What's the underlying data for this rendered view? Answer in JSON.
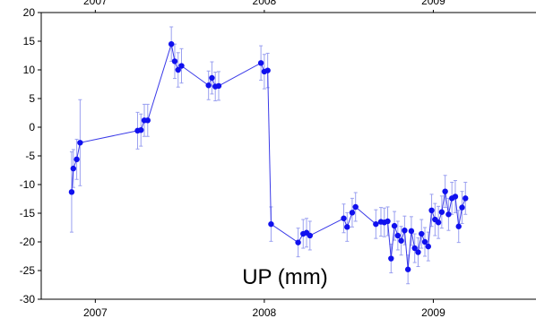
{
  "chart_data": {
    "type": "scatter",
    "title": "",
    "inner_label": "UP (mm)",
    "xlabel": "",
    "ylabel": "",
    "xlim": [
      2006.68,
      2009.65
    ],
    "ylim": [
      -30,
      20
    ],
    "x_ticks": [
      2007,
      2008,
      2009
    ],
    "x_tick_labels": [
      "2007",
      "2008",
      "2009"
    ],
    "y_ticks": [
      20,
      15,
      10,
      5,
      0,
      -5,
      -10,
      -15,
      -20,
      -25,
      -30
    ],
    "y_tick_labels": [
      "20",
      "15",
      "10",
      "5",
      "0",
      "-5",
      "-10",
      "-15",
      "-20",
      "-25",
      "-30"
    ],
    "grid": false,
    "colors": {
      "series": "#1010ee",
      "error_bar": "#9aa0f0",
      "line": "#3a3ae8",
      "axis": "#000000"
    },
    "series": [
      {
        "points": [
          {
            "x": 2006.86,
            "y": -11.3,
            "err": 7.0
          },
          {
            "x": 2006.87,
            "y": -7.2,
            "err": 3.3
          },
          {
            "x": 2006.89,
            "y": -5.6,
            "err": 3.5
          },
          {
            "x": 2006.91,
            "y": -2.7,
            "err": 7.5
          },
          {
            "x": 2007.25,
            "y": -0.6,
            "err": 3.2
          },
          {
            "x": 2007.27,
            "y": -0.5,
            "err": 2.8
          },
          {
            "x": 2007.29,
            "y": 1.2,
            "err": 2.8
          },
          {
            "x": 2007.31,
            "y": 1.2,
            "err": 2.8
          },
          {
            "x": 2007.45,
            "y": 14.5,
            "err": 3.0
          },
          {
            "x": 2007.47,
            "y": 11.5,
            "err": 3.0
          },
          {
            "x": 2007.49,
            "y": 10.0,
            "err": 3.0
          },
          {
            "x": 2007.51,
            "y": 10.7,
            "err": 3.0
          },
          {
            "x": 2007.67,
            "y": 7.3,
            "err": 2.5
          },
          {
            "x": 2007.69,
            "y": 8.6,
            "err": 2.8
          },
          {
            "x": 2007.71,
            "y": 7.1,
            "err": 2.5
          },
          {
            "x": 2007.73,
            "y": 7.2,
            "err": 2.5
          },
          {
            "x": 2007.98,
            "y": 11.2,
            "err": 3.0
          },
          {
            "x": 2008.0,
            "y": 9.7,
            "err": 3.0
          },
          {
            "x": 2008.02,
            "y": 9.9,
            "err": 3.0
          },
          {
            "x": 2008.04,
            "y": -16.9,
            "err": 3.0
          },
          {
            "x": 2008.2,
            "y": -20.1,
            "err": 2.5
          },
          {
            "x": 2008.23,
            "y": -18.6,
            "err": 2.5
          },
          {
            "x": 2008.25,
            "y": -18.4,
            "err": 2.5
          },
          {
            "x": 2008.27,
            "y": -18.9,
            "err": 2.5
          },
          {
            "x": 2008.47,
            "y": -15.9,
            "err": 2.5
          },
          {
            "x": 2008.49,
            "y": -17.4,
            "err": 2.5
          },
          {
            "x": 2008.52,
            "y": -14.9,
            "err": 2.5
          },
          {
            "x": 2008.54,
            "y": -13.9,
            "err": 2.5
          },
          {
            "x": 2008.66,
            "y": -16.9,
            "err": 2.5
          },
          {
            "x": 2008.69,
            "y": -16.5,
            "err": 2.5
          },
          {
            "x": 2008.71,
            "y": -16.6,
            "err": 2.5
          },
          {
            "x": 2008.73,
            "y": -16.4,
            "err": 2.5
          },
          {
            "x": 2008.75,
            "y": -22.9,
            "err": 2.5
          },
          {
            "x": 2008.77,
            "y": -17.2,
            "err": 2.5
          },
          {
            "x": 2008.79,
            "y": -18.9,
            "err": 2.5
          },
          {
            "x": 2008.81,
            "y": -19.8,
            "err": 2.5
          },
          {
            "x": 2008.83,
            "y": -18.0,
            "err": 2.5
          },
          {
            "x": 2008.85,
            "y": -24.8,
            "err": 2.5
          },
          {
            "x": 2008.87,
            "y": -18.1,
            "err": 2.5
          },
          {
            "x": 2008.89,
            "y": -21.1,
            "err": 2.5
          },
          {
            "x": 2008.91,
            "y": -21.8,
            "err": 2.5
          },
          {
            "x": 2008.93,
            "y": -18.6,
            "err": 2.5
          },
          {
            "x": 2008.95,
            "y": -20.0,
            "err": 2.5
          },
          {
            "x": 2008.97,
            "y": -20.8,
            "err": 2.5
          },
          {
            "x": 2008.99,
            "y": -14.5,
            "err": 2.8
          },
          {
            "x": 2009.01,
            "y": -16.1,
            "err": 2.8
          },
          {
            "x": 2009.03,
            "y": -16.6,
            "err": 2.8
          },
          {
            "x": 2009.05,
            "y": -14.8,
            "err": 2.8
          },
          {
            "x": 2009.07,
            "y": -11.2,
            "err": 2.8
          },
          {
            "x": 2009.09,
            "y": -15.2,
            "err": 2.8
          },
          {
            "x": 2009.11,
            "y": -12.4,
            "err": 2.8
          },
          {
            "x": 2009.13,
            "y": -12.1,
            "err": 2.8
          },
          {
            "x": 2009.15,
            "y": -17.3,
            "err": 2.8
          },
          {
            "x": 2009.17,
            "y": -14.0,
            "err": 2.8
          },
          {
            "x": 2009.19,
            "y": -12.4,
            "err": 2.8
          }
        ]
      }
    ]
  }
}
